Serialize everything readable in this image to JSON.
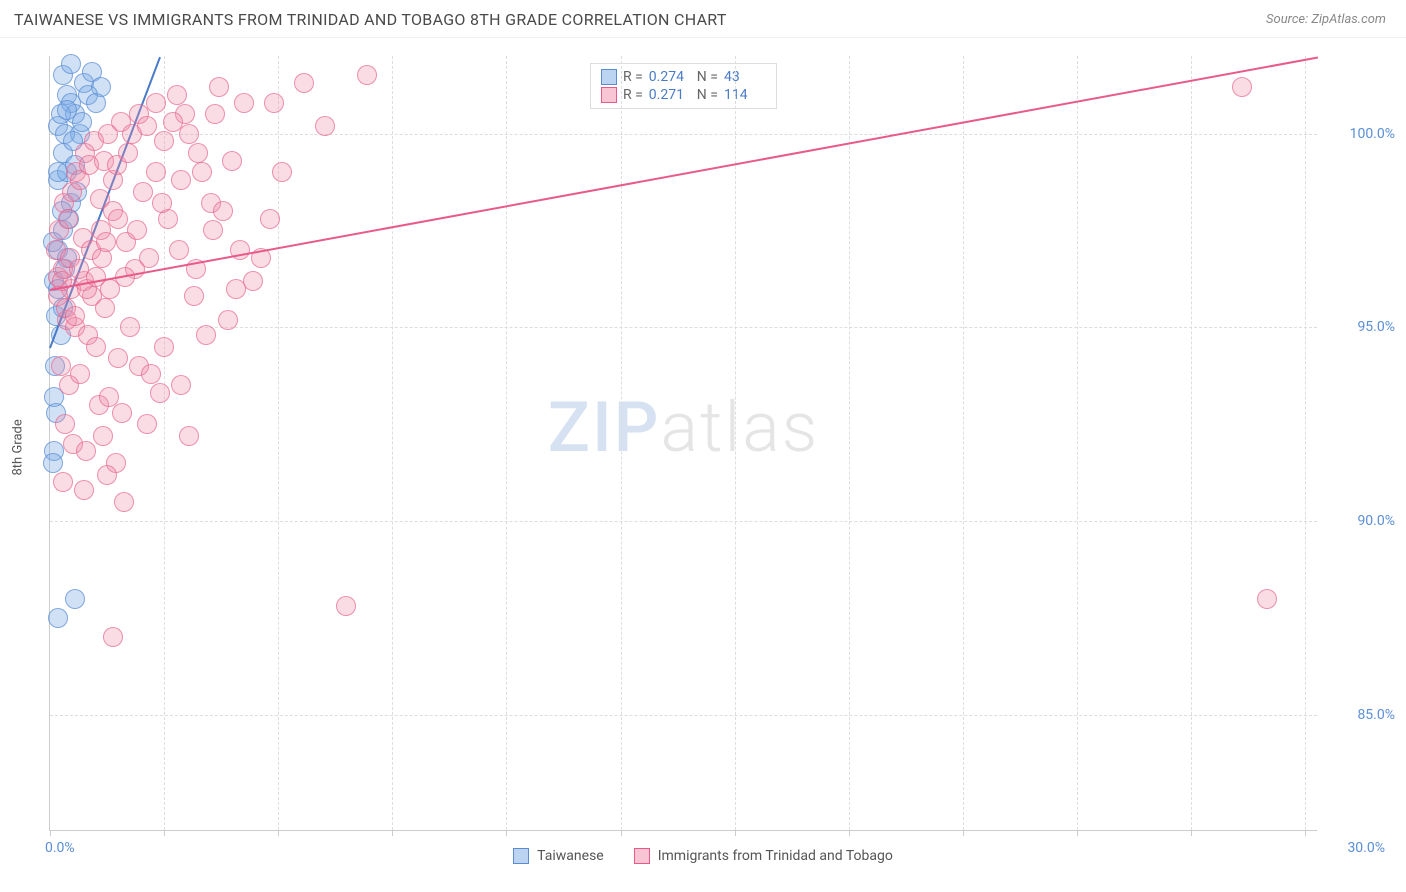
{
  "header": {
    "title": "TAIWANESE VS IMMIGRANTS FROM TRINIDAD AND TOBAGO 8TH GRADE CORRELATION CHART",
    "source": "Source: ZipAtlas.com"
  },
  "chart": {
    "type": "scatter",
    "y_axis_title": "8th Grade",
    "xlim": [
      0,
      30
    ],
    "ylim": [
      82,
      102
    ],
    "x_tick_positions": [
      0,
      2.7,
      5.4,
      8.1,
      10.8,
      13.5,
      16.2,
      18.9,
      21.6,
      24.3,
      27.0,
      29.7
    ],
    "y_gridlines": [
      85.0,
      90.0,
      95.0,
      100.0
    ],
    "y_labels": [
      "85.0%",
      "90.0%",
      "95.0%",
      "100.0%"
    ],
    "x_label_start": "0.0%",
    "x_label_end": "30.0%",
    "point_radius": 10,
    "background_color": "#ffffff",
    "grid_color": "#dddddd",
    "watermark": {
      "part1": "ZIP",
      "part2": "atlas"
    },
    "series": [
      {
        "name": "Taiwanese",
        "color_fill": "rgba(120,170,230,0.35)",
        "color_stroke": "rgba(90,140,210,0.7)",
        "trend_color": "#4a7bc8",
        "R": "0.274",
        "N": "43",
        "trend": {
          "x1": 0.0,
          "y1": 94.5,
          "x2": 2.6,
          "y2": 102.0
        },
        "points": [
          [
            0.1,
            96.2
          ],
          [
            0.2,
            100.2
          ],
          [
            0.3,
            101.5
          ],
          [
            0.4,
            101.0
          ],
          [
            0.5,
            100.8
          ],
          [
            0.3,
            99.5
          ],
          [
            0.2,
            98.8
          ],
          [
            0.4,
            99.0
          ],
          [
            0.6,
            100.5
          ],
          [
            0.8,
            101.3
          ],
          [
            1.0,
            101.6
          ],
          [
            1.2,
            101.2
          ],
          [
            0.5,
            98.2
          ],
          [
            0.3,
            97.5
          ],
          [
            0.2,
            97.0
          ],
          [
            0.4,
            96.8
          ],
          [
            0.6,
            99.2
          ],
          [
            0.15,
            95.3
          ],
          [
            0.25,
            94.8
          ],
          [
            0.1,
            93.2
          ],
          [
            0.15,
            92.8
          ],
          [
            0.1,
            91.8
          ],
          [
            0.08,
            91.5
          ],
          [
            0.5,
            101.8
          ],
          [
            0.7,
            100.0
          ],
          [
            0.6,
            88.0
          ],
          [
            0.2,
            87.5
          ],
          [
            0.35,
            100.0
          ],
          [
            0.55,
            99.8
          ],
          [
            0.9,
            101.0
          ],
          [
            0.2,
            96.0
          ],
          [
            0.3,
            95.5
          ],
          [
            0.12,
            94.0
          ],
          [
            0.45,
            97.8
          ],
          [
            0.65,
            98.5
          ],
          [
            0.25,
            100.5
          ],
          [
            1.1,
            100.8
          ],
          [
            0.75,
            100.3
          ],
          [
            0.4,
            100.6
          ],
          [
            0.18,
            99.0
          ],
          [
            0.28,
            98.0
          ],
          [
            0.35,
            96.5
          ],
          [
            0.08,
            97.2
          ]
        ]
      },
      {
        "name": "Immigrants from Trinidad and Tobago",
        "color_fill": "rgba(240,140,170,0.3)",
        "color_stroke": "rgba(230,100,140,0.65)",
        "trend_color": "#e85a8a",
        "R": "0.271",
        "N": "114",
        "trend": {
          "x1": 0.0,
          "y1": 96.0,
          "x2": 30.0,
          "y2": 102.0
        },
        "points": [
          [
            0.2,
            96.3
          ],
          [
            0.3,
            96.5
          ],
          [
            0.5,
            96.0
          ],
          [
            0.8,
            96.2
          ],
          [
            1.0,
            95.8
          ],
          [
            1.2,
            97.5
          ],
          [
            1.5,
            98.0
          ],
          [
            1.8,
            97.2
          ],
          [
            2.0,
            96.5
          ],
          [
            2.2,
            98.5
          ],
          [
            2.5,
            99.0
          ],
          [
            2.8,
            97.8
          ],
          [
            3.0,
            101.0
          ],
          [
            3.2,
            100.5
          ],
          [
            3.5,
            99.5
          ],
          [
            3.8,
            98.2
          ],
          [
            4.0,
            101.2
          ],
          [
            4.5,
            97.0
          ],
          [
            5.0,
            96.8
          ],
          [
            5.3,
            100.8
          ],
          [
            5.5,
            99.0
          ],
          [
            6.0,
            101.3
          ],
          [
            6.5,
            100.2
          ],
          [
            7.5,
            101.5
          ],
          [
            0.4,
            95.2
          ],
          [
            0.6,
            95.0
          ],
          [
            0.9,
            94.8
          ],
          [
            1.1,
            94.5
          ],
          [
            1.3,
            95.5
          ],
          [
            1.6,
            94.2
          ],
          [
            1.9,
            95.0
          ],
          [
            2.1,
            94.0
          ],
          [
            2.4,
            93.8
          ],
          [
            2.7,
            94.5
          ],
          [
            3.1,
            93.5
          ],
          [
            3.4,
            95.8
          ],
          [
            3.7,
            94.8
          ],
          [
            4.2,
            95.2
          ],
          [
            4.8,
            96.2
          ],
          [
            0.25,
            94.0
          ],
          [
            0.45,
            93.5
          ],
          [
            0.7,
            93.8
          ],
          [
            1.15,
            93.0
          ],
          [
            1.4,
            93.2
          ],
          [
            1.7,
            92.8
          ],
          [
            2.3,
            92.5
          ],
          [
            2.6,
            93.3
          ],
          [
            3.3,
            92.2
          ],
          [
            0.35,
            92.5
          ],
          [
            0.55,
            92.0
          ],
          [
            0.85,
            91.8
          ],
          [
            1.25,
            92.2
          ],
          [
            1.55,
            91.5
          ],
          [
            0.3,
            91.0
          ],
          [
            0.8,
            90.8
          ],
          [
            1.35,
            91.2
          ],
          [
            1.75,
            90.5
          ],
          [
            1.5,
            87.0
          ],
          [
            7.0,
            87.8
          ],
          [
            28.2,
            101.2
          ],
          [
            28.8,
            88.0
          ],
          [
            0.15,
            97.0
          ],
          [
            0.22,
            97.5
          ],
          [
            0.32,
            98.2
          ],
          [
            0.42,
            97.8
          ],
          [
            0.52,
            98.5
          ],
          [
            0.62,
            99.0
          ],
          [
            0.72,
            98.8
          ],
          [
            0.82,
            99.5
          ],
          [
            0.92,
            99.2
          ],
          [
            1.05,
            99.8
          ],
          [
            1.18,
            98.3
          ],
          [
            1.28,
            99.3
          ],
          [
            1.38,
            100.0
          ],
          [
            1.48,
            98.8
          ],
          [
            1.58,
            99.2
          ],
          [
            1.68,
            100.3
          ],
          [
            1.85,
            99.5
          ],
          [
            1.95,
            100.0
          ],
          [
            2.1,
            100.5
          ],
          [
            2.3,
            100.2
          ],
          [
            2.5,
            100.8
          ],
          [
            2.7,
            99.8
          ],
          [
            2.9,
            100.3
          ],
          [
            3.1,
            98.8
          ],
          [
            3.3,
            100.0
          ],
          [
            3.6,
            99.0
          ],
          [
            3.9,
            100.5
          ],
          [
            4.3,
            99.3
          ],
          [
            4.6,
            100.8
          ],
          [
            0.18,
            95.8
          ],
          [
            0.28,
            96.2
          ],
          [
            0.38,
            95.5
          ],
          [
            0.48,
            96.8
          ],
          [
            0.58,
            95.3
          ],
          [
            0.68,
            96.5
          ],
          [
            0.78,
            97.3
          ],
          [
            0.88,
            96.0
          ],
          [
            0.98,
            97.0
          ],
          [
            1.08,
            96.3
          ],
          [
            1.22,
            96.8
          ],
          [
            1.32,
            97.2
          ],
          [
            1.42,
            96.0
          ],
          [
            1.62,
            97.8
          ],
          [
            1.78,
            96.3
          ],
          [
            2.05,
            97.5
          ],
          [
            2.35,
            96.8
          ],
          [
            2.65,
            98.2
          ],
          [
            3.05,
            97.0
          ],
          [
            3.45,
            96.5
          ],
          [
            3.85,
            97.5
          ],
          [
            4.1,
            98.0
          ],
          [
            4.4,
            96.0
          ],
          [
            5.2,
            97.8
          ]
        ]
      }
    ],
    "bottom_legend": [
      {
        "swatch": "blue",
        "label": "Taiwanese"
      },
      {
        "swatch": "pink",
        "label": "Immigrants from Trinidad and Tobago"
      }
    ]
  }
}
